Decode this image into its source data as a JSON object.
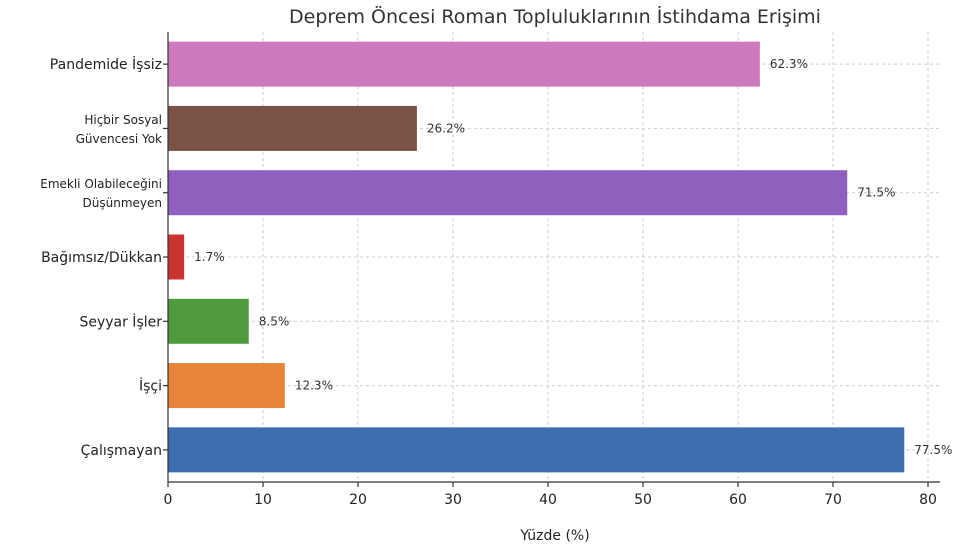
{
  "chart_data": {
    "type": "bar",
    "orientation": "horizontal",
    "title": "Deprem Öncesi Roman Topluluklarının İstihdama Erişimi",
    "xlabel": "Yüzde (%)",
    "ylabel": "",
    "xlim": [
      0,
      80
    ],
    "xticks": [
      0,
      10,
      20,
      30,
      40,
      50,
      60,
      70,
      80
    ],
    "grid": true,
    "legend": "none",
    "categories": [
      [
        "Pandemide İşsiz"
      ],
      [
        "Hiçbir Sosyal",
        "Güvencesi Yok"
      ],
      [
        "Emekli Olabileceğini",
        "Düşünmeyen"
      ],
      [
        "Bağımsız/Dükkan"
      ],
      [
        "Seyyar İşler"
      ],
      [
        "İşçi"
      ],
      [
        "Çalışmayan"
      ]
    ],
    "values": [
      62.3,
      26.2,
      71.5,
      1.7,
      8.5,
      12.3,
      77.5
    ],
    "value_labels": [
      "62.3%",
      "26.2%",
      "71.5%",
      "1.7%",
      "8.5%",
      "12.3%",
      "77.5%"
    ],
    "colors": [
      "#cc79bd",
      "#7a5246",
      "#8f60be",
      "#c93430",
      "#4e9a3c",
      "#e8833a",
      "#3d6fb0"
    ]
  }
}
